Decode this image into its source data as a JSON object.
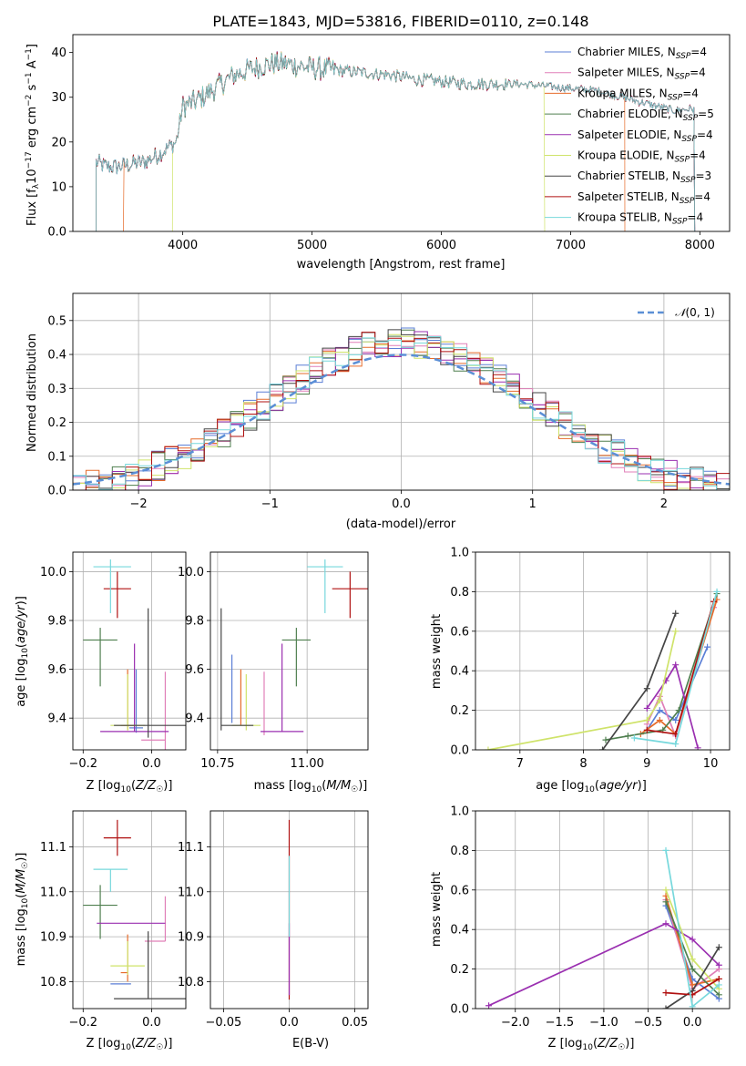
{
  "title": "PLATE=1843, MJD=53816, FIBERID=0110, z=0.148",
  "colors": [
    "#5b7fd6",
    "#e07fb8",
    "#e66b2a",
    "#4f7f4f",
    "#9a2fb0",
    "#cfe36a",
    "#454545",
    "#b01010",
    "#77d8dc"
  ],
  "chart_data": [
    {
      "id": "spectrum",
      "type": "line",
      "xlabel": "wavelength [Angstrom, rest frame]",
      "ylabel": "Flux [f_λ 10^-17 erg cm^-2 s^-1 A^-1]",
      "xlim": [
        3150,
        8230
      ],
      "ylim": [
        0,
        44
      ],
      "xticks": [
        4000,
        5000,
        6000,
        7000,
        8000
      ],
      "yticks": [
        0,
        10,
        20,
        30,
        40
      ],
      "grid": false,
      "legend_position": "top-right",
      "legend": [
        {
          "name": "Chabrier MILES",
          "nssp": "4"
        },
        {
          "name": "Salpeter MILES",
          "nssp": "4"
        },
        {
          "name": "Kroupa MILES",
          "nssp": "4"
        },
        {
          "name": "Chabrier ELODIE",
          "nssp": "5"
        },
        {
          "name": "Salpeter ELODIE",
          "nssp": "4"
        },
        {
          "name": "Kroupa ELODIE",
          "nssp": "4"
        },
        {
          "name": "Chabrier STELIB",
          "nssp": "3"
        },
        {
          "name": "Salpeter STELIB",
          "nssp": "4"
        },
        {
          "name": "Kroupa STELIB",
          "nssp": "4"
        }
      ],
      "envelope": [
        [
          3330,
          15.5
        ],
        [
          3400,
          14.5
        ],
        [
          3500,
          14.5
        ],
        [
          3600,
          15
        ],
        [
          3700,
          15.5
        ],
        [
          3800,
          17
        ],
        [
          3900,
          19
        ],
        [
          3950,
          20
        ],
        [
          4000,
          28
        ],
        [
          4100,
          29
        ],
        [
          4200,
          31
        ],
        [
          4300,
          33
        ],
        [
          4400,
          35
        ],
        [
          4500,
          36
        ],
        [
          4600,
          37
        ],
        [
          4700,
          37.5
        ],
        [
          4800,
          37.5
        ],
        [
          4900,
          37
        ],
        [
          5000,
          36.5
        ],
        [
          5200,
          36
        ],
        [
          5400,
          35.5
        ],
        [
          5600,
          35
        ],
        [
          5800,
          34
        ],
        [
          6000,
          33.5
        ],
        [
          6200,
          33
        ],
        [
          6400,
          33
        ],
        [
          6600,
          33
        ],
        [
          6800,
          32.5
        ],
        [
          7000,
          32
        ],
        [
          7200,
          31.5
        ],
        [
          7400,
          30
        ],
        [
          7600,
          28.5
        ],
        [
          7800,
          27
        ],
        [
          7960,
          27.5
        ]
      ],
      "model_ranges": [
        [
          3330,
          7960
        ],
        [
          3330,
          7960
        ],
        [
          3540,
          7420
        ],
        [
          3330,
          7960
        ],
        [
          3330,
          7960
        ],
        [
          3920,
          6800
        ],
        [
          3330,
          7960
        ],
        [
          3330,
          7960
        ],
        [
          3330,
          7960
        ]
      ]
    },
    {
      "id": "residuals",
      "type": "histogram",
      "xlabel": "(data-model)/error",
      "ylabel": "Normed distribution",
      "xlim": [
        -2.5,
        2.5
      ],
      "ylim": [
        0,
        0.58
      ],
      "xticks": [
        -2,
        -1,
        0,
        1,
        2
      ],
      "yticks": [
        0.0,
        0.1,
        0.2,
        0.3,
        0.4,
        0.5
      ],
      "grid": true,
      "legend_position": "top-right",
      "reference_label": "N(0,1)",
      "bin_width": 0.1
    },
    {
      "id": "age-vs-z",
      "type": "scatter",
      "xlabel": "Z [log10(Z/Z☉)]",
      "ylabel": "age [log10(age/yr)]",
      "xlim": [
        -0.23,
        0.1
      ],
      "ylim": [
        9.27,
        10.08
      ],
      "xticks": [
        -0.2,
        0.0
      ],
      "yticks": [
        9.4,
        9.6,
        9.8,
        10.0
      ],
      "grid": true,
      "points": [
        {
          "x": -0.045,
          "y": 9.36,
          "xerr": [
            0.02,
            0.02
          ],
          "yerr": [
            0.02,
            0.24
          ]
        },
        {
          "x": 0.04,
          "y": 9.31,
          "xerr": [
            0.07,
            0.0
          ],
          "yerr": [
            0.04,
            0.28
          ]
        },
        {
          "x": -0.07,
          "y": 9.37,
          "xerr": [
            0.02,
            0.02
          ],
          "yerr": [
            0.02,
            0.23
          ]
        },
        {
          "x": -0.15,
          "y": 9.72,
          "xerr": [
            0.05,
            0.05
          ],
          "yerr": [
            0.19,
            0.05
          ]
        },
        {
          "x": -0.05,
          "y": 9.345,
          "xerr": [
            0.1,
            0.1
          ],
          "yerr": [
            0.0,
            0.36
          ]
        },
        {
          "x": -0.07,
          "y": 9.37,
          "xerr": [
            0.05,
            0.05
          ],
          "yerr": [
            0.02,
            0.21
          ]
        },
        {
          "x": -0.01,
          "y": 9.37,
          "xerr": [
            0.1,
            0.13
          ],
          "yerr": [
            0.05,
            0.48
          ]
        },
        {
          "x": -0.1,
          "y": 9.93,
          "xerr": [
            0.04,
            0.04
          ],
          "yerr": [
            0.12,
            0.07
          ]
        },
        {
          "x": -0.12,
          "y": 10.02,
          "xerr": [
            0.05,
            0.06
          ],
          "yerr": [
            0.19,
            0.03
          ]
        }
      ]
    },
    {
      "id": "age-vs-mass",
      "type": "scatter",
      "xlabel": "mass [log10(M/M☉)]",
      "ylabel": "",
      "xlim": [
        10.73,
        11.17
      ],
      "ylim": [
        9.27,
        10.08
      ],
      "xticks": [
        10.75,
        11.0
      ],
      "yticks": [
        9.4,
        9.6,
        9.8,
        10.0
      ],
      "grid": true,
      "points": [
        {
          "x": 10.79,
          "y": 9.38,
          "xerr": [
            0.0,
            0.0
          ],
          "yerr": [
            0.0,
            0.28
          ]
        },
        {
          "x": 10.88,
          "y": 9.33,
          "xerr": [
            0.0,
            0.0
          ],
          "yerr": [
            0.0,
            0.26
          ]
        },
        {
          "x": 10.815,
          "y": 9.37,
          "xerr": [
            0.0,
            0.0
          ],
          "yerr": [
            0.0,
            0.23
          ]
        },
        {
          "x": 10.97,
          "y": 9.72,
          "xerr": [
            0.04,
            0.04
          ],
          "yerr": [
            0.19,
            0.05
          ]
        },
        {
          "x": 10.93,
          "y": 9.345,
          "xerr": [
            0.06,
            0.06
          ],
          "yerr": [
            0.0,
            0.36
          ]
        },
        {
          "x": 10.83,
          "y": 9.37,
          "xerr": [
            0.04,
            0.04
          ],
          "yerr": [
            0.02,
            0.21
          ]
        },
        {
          "x": 10.76,
          "y": 9.37,
          "xerr": [
            0.0,
            0.09
          ],
          "yerr": [
            0.02,
            0.48
          ]
        },
        {
          "x": 11.12,
          "y": 9.93,
          "xerr": [
            0.05,
            0.05
          ],
          "yerr": [
            0.12,
            0.07
          ]
        },
        {
          "x": 11.05,
          "y": 10.02,
          "xerr": [
            0.05,
            0.05
          ],
          "yerr": [
            0.19,
            0.03
          ]
        }
      ]
    },
    {
      "id": "weight-vs-age",
      "type": "line",
      "xlabel": "age [log10(age/yr)]",
      "ylabel": "mass weight",
      "xlim": [
        6.3,
        10.3
      ],
      "ylim": [
        0,
        1.0
      ],
      "xticks": [
        7,
        8,
        9,
        10
      ],
      "yticks": [
        0.0,
        0.2,
        0.4,
        0.6,
        0.8,
        1.0
      ],
      "grid": true,
      "series": [
        {
          "x": [
            9.0,
            9.2,
            9.45,
            9.95
          ],
          "y": [
            0.1,
            0.2,
            0.15,
            0.52
          ]
        },
        {
          "x": [
            9.0,
            9.2,
            9.45,
            10.05
          ],
          "y": [
            0.13,
            0.27,
            0.07,
            0.72
          ]
        },
        {
          "x": [
            8.9,
            9.2,
            9.45,
            10.1
          ],
          "y": [
            0.08,
            0.15,
            0.08,
            0.76
          ]
        },
        {
          "x": [
            8.35,
            8.7,
            9.25,
            9.5,
            10.1
          ],
          "y": [
            0.05,
            0.07,
            0.1,
            0.2,
            0.79
          ]
        },
        {
          "x": [
            9.0,
            9.3,
            9.45,
            9.8
          ],
          "y": [
            0.21,
            0.35,
            0.43,
            0.01
          ]
        },
        {
          "x": [
            6.5,
            9.0,
            9.2,
            9.45
          ],
          "y": [
            0.0,
            0.15,
            0.25,
            0.6
          ]
        },
        {
          "x": [
            8.3,
            9.0,
            9.45
          ],
          "y": [
            0.0,
            0.31,
            0.69
          ]
        },
        {
          "x": [
            9.0,
            9.45,
            10.05
          ],
          "y": [
            0.1,
            0.08,
            0.75
          ]
        },
        {
          "x": [
            8.8,
            9.45,
            10.1
          ],
          "y": [
            0.06,
            0.03,
            0.8
          ]
        }
      ]
    },
    {
      "id": "mass-vs-z",
      "type": "scatter",
      "xlabel": "Z [log10(Z/Z☉)]",
      "ylabel": "mass [log10(M/M☉)]",
      "xlim": [
        -0.23,
        0.1
      ],
      "ylim": [
        10.74,
        11.18
      ],
      "xticks": [
        -0.2,
        0.0
      ],
      "yticks": [
        10.8,
        10.9,
        11.0,
        11.1
      ],
      "grid": true,
      "points": [
        {
          "x": -0.09,
          "y": 10.795,
          "xerr": [
            0.03,
            0.03
          ],
          "yerr": [
            0.0,
            0.0
          ]
        },
        {
          "x": 0.04,
          "y": 10.89,
          "xerr": [
            0.06,
            0.0
          ],
          "yerr": [
            0.0,
            0.1
          ]
        },
        {
          "x": -0.07,
          "y": 10.82,
          "xerr": [
            0.02,
            0.0
          ],
          "yerr": [
            0.02,
            0.085
          ]
        },
        {
          "x": -0.15,
          "y": 10.97,
          "xerr": [
            0.05,
            0.05
          ],
          "yerr": [
            0.075,
            0.045
          ]
        },
        {
          "x": -0.06,
          "y": 10.93,
          "xerr": [
            0.1,
            0.1
          ],
          "yerr": [
            0.0,
            0.0
          ]
        },
        {
          "x": -0.07,
          "y": 10.835,
          "xerr": [
            0.05,
            0.05
          ],
          "yerr": [
            0.02,
            0.055
          ]
        },
        {
          "x": -0.01,
          "y": 10.762,
          "xerr": [
            0.1,
            0.13
          ],
          "yerr": [
            0.0,
            0.15
          ]
        },
        {
          "x": -0.1,
          "y": 11.12,
          "xerr": [
            0.04,
            0.04
          ],
          "yerr": [
            0.04,
            0.04
          ]
        },
        {
          "x": -0.12,
          "y": 11.05,
          "xerr": [
            0.05,
            0.05
          ],
          "yerr": [
            0.05,
            0.0
          ]
        }
      ]
    },
    {
      "id": "mass-vs-ebv",
      "type": "scatter",
      "xlabel": "E(B-V)",
      "ylabel": "",
      "xlim": [
        -0.06,
        0.06
      ],
      "ylim": [
        10.74,
        11.18
      ],
      "xticks": [
        -0.05,
        0.0,
        0.05
      ],
      "yticks": [
        10.8,
        10.9,
        11.0,
        11.1
      ],
      "grid": true,
      "points": [
        {
          "x": 0.0,
          "y": 10.96,
          "xerr": [
            0,
            0
          ],
          "yerr": [
            0.2,
            0.2
          ]
        },
        {
          "x": 0.0,
          "y": 10.9,
          "xerr": [
            0,
            0
          ],
          "yerr": [
            0.13,
            0.03
          ]
        },
        {
          "x": 0.0,
          "y": 11.02,
          "xerr": [
            0,
            0
          ],
          "yerr": [
            0.12,
            0.06
          ]
        }
      ]
    },
    {
      "id": "weight-vs-z",
      "type": "line",
      "xlabel": "Z [log10(Z/Z☉)]",
      "ylabel": "mass weight",
      "xlim": [
        -2.45,
        0.42
      ],
      "ylim": [
        0,
        1.0
      ],
      "xticks": [
        -2.0,
        -1.5,
        -1.0,
        -0.5,
        0.0
      ],
      "yticks": [
        0.0,
        0.2,
        0.4,
        0.6,
        0.8,
        1.0
      ],
      "grid": true,
      "series": [
        {
          "x": [
            -0.3,
            0.0,
            0.3
          ],
          "y": [
            0.52,
            0.15,
            0.05
          ]
        },
        {
          "x": [
            -0.3,
            0.0,
            0.3
          ],
          "y": [
            0.55,
            0.1,
            0.2
          ]
        },
        {
          "x": [
            -0.3,
            0.0,
            0.3
          ],
          "y": [
            0.57,
            0.12,
            0.15
          ]
        },
        {
          "x": [
            -0.3,
            0.0,
            0.3
          ],
          "y": [
            0.54,
            0.2,
            0.07
          ]
        },
        {
          "x": [
            -2.3,
            -0.3,
            0.0,
            0.3
          ],
          "y": [
            0.015,
            0.43,
            0.35,
            0.22
          ]
        },
        {
          "x": [
            -0.3,
            0.0,
            0.3
          ],
          "y": [
            0.6,
            0.25,
            0.1
          ]
        },
        {
          "x": [
            -0.3,
            0.0,
            0.3
          ],
          "y": [
            0.0,
            0.09,
            0.31
          ]
        },
        {
          "x": [
            -0.3,
            0.0,
            0.3
          ],
          "y": [
            0.08,
            0.07,
            0.15
          ]
        },
        {
          "x": [
            -0.3,
            0.0,
            0.3
          ],
          "y": [
            0.8,
            0.01,
            0.12
          ]
        }
      ]
    }
  ]
}
